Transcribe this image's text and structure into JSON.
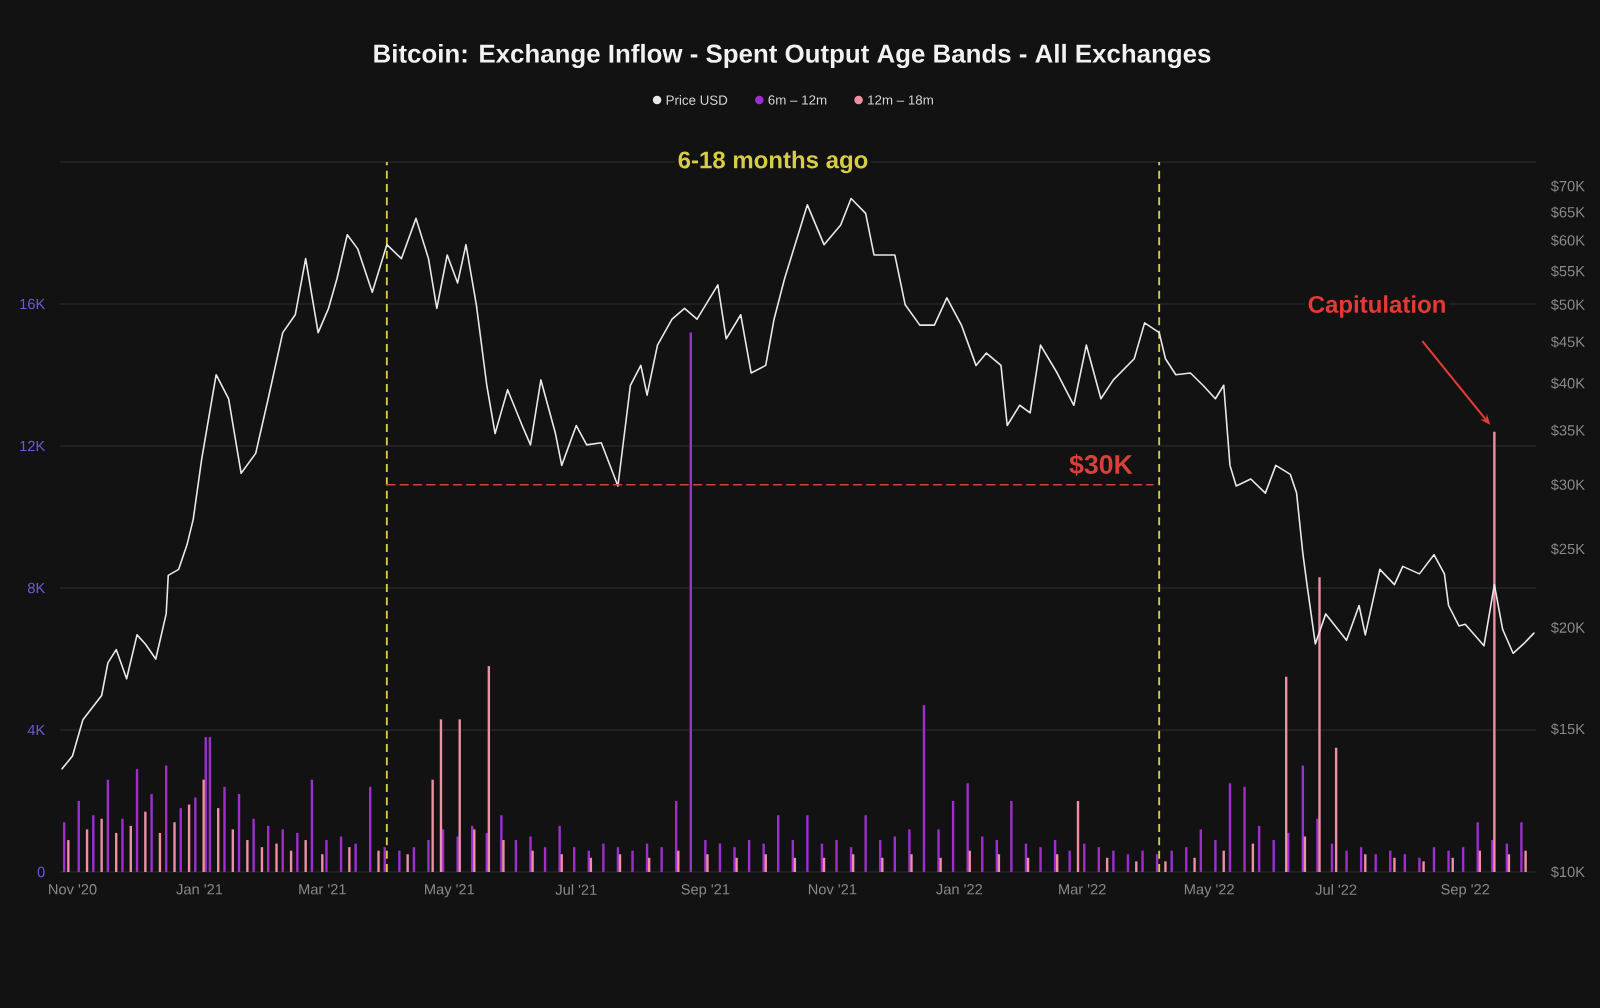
{
  "chart_data": {
    "type": "bar",
    "title": "Bitcoin: Exchange Inflow - Spent Output Age Bands - All Exchanges",
    "xlim": [
      "2020-10-26",
      "2022-10-05"
    ],
    "xticks": [
      {
        "value": "2020-11-01",
        "label": "Nov '20"
      },
      {
        "value": "2021-01-01",
        "label": "Jan '21"
      },
      {
        "value": "2021-03-01",
        "label": "Mar '21"
      },
      {
        "value": "2021-05-01",
        "label": "May '21"
      },
      {
        "value": "2021-07-01",
        "label": "Jul '21"
      },
      {
        "value": "2021-09-01",
        "label": "Sep '21"
      },
      {
        "value": "2021-11-01",
        "label": "Nov '21"
      },
      {
        "value": "2022-01-01",
        "label": "Jan '22"
      },
      {
        "value": "2022-03-01",
        "label": "Mar '22"
      },
      {
        "value": "2022-05-01",
        "label": "May '22"
      },
      {
        "value": "2022-07-01",
        "label": "Jul '22"
      },
      {
        "value": "2022-09-01",
        "label": "Sep '22"
      }
    ],
    "ylim": [
      0,
      20000
    ],
    "yticks": [
      0,
      {
        "value": 4000,
        "label": "4K"
      },
      {
        "value": 8000,
        "label": "8K"
      },
      {
        "value": 12000,
        "label": "12K"
      },
      {
        "value": 16000,
        "label": "16K"
      },
      {
        "value": 20000,
        "label": null
      }
    ],
    "y2lim": [
      10000,
      75000
    ],
    "y2ticks": [
      {
        "value": 10000,
        "label": "$10K"
      },
      {
        "value": 15000,
        "label": "$15K"
      },
      {
        "value": 20000,
        "label": "$20K"
      },
      {
        "value": 25000,
        "label": "$25K"
      },
      {
        "value": 30000,
        "label": "$30K"
      },
      {
        "value": 35000,
        "label": "$35K"
      },
      {
        "value": 40000,
        "label": "$40K"
      },
      {
        "value": 45000,
        "label": "$45K"
      },
      {
        "value": 50000,
        "label": "$50K"
      },
      {
        "value": 55000,
        "label": "$55K"
      },
      {
        "value": 60000,
        "label": "$60K"
      },
      {
        "value": 65000,
        "label": "$65K"
      },
      {
        "value": 70000,
        "label": "$70K"
      }
    ],
    "log": "y2",
    "grid": "y",
    "legend": "top",
    "series": [
      {
        "name": "Price USD",
        "type": "line",
        "axis": "y2",
        "color": "#e8e8e8",
        "x": [
          "2020-10-27",
          "2020-11-01",
          "2020-11-06",
          "2020-11-11",
          "2020-11-15",
          "2020-11-18",
          "2020-11-22",
          "2020-11-27",
          "2020-12-02",
          "2020-12-06",
          "2020-12-11",
          "2020-12-16",
          "2020-12-17",
          "2020-12-22",
          "2020-12-26",
          "2020-12-29",
          "2021-01-02",
          "2021-01-09",
          "2021-01-15",
          "2021-01-21",
          "2021-01-28",
          "2021-02-03",
          "2021-02-10",
          "2021-02-16",
          "2021-02-21",
          "2021-02-27",
          "2021-03-04",
          "2021-03-08",
          "2021-03-13",
          "2021-03-18",
          "2021-03-25",
          "2021-04-01",
          "2021-04-08",
          "2021-04-15",
          "2021-04-21",
          "2021-04-25",
          "2021-04-30",
          "2021-05-05",
          "2021-05-09",
          "2021-05-14",
          "2021-05-19",
          "2021-05-23",
          "2021-05-29",
          "2021-06-05",
          "2021-06-09",
          "2021-06-14",
          "2021-06-21",
          "2021-06-24",
          "2021-07-01",
          "2021-07-06",
          "2021-07-13",
          "2021-07-21",
          "2021-07-27",
          "2021-08-01",
          "2021-08-04",
          "2021-08-09",
          "2021-08-16",
          "2021-08-22",
          "2021-08-28",
          "2021-09-07",
          "2021-09-11",
          "2021-09-18",
          "2021-09-23",
          "2021-09-30",
          "2021-10-04",
          "2021-10-09",
          "2021-10-17",
          "2021-10-20",
          "2021-10-28",
          "2021-11-05",
          "2021-11-10",
          "2021-11-17",
          "2021-11-21",
          "2021-12-01",
          "2021-12-06",
          "2021-12-13",
          "2021-12-20",
          "2021-12-26",
          "2022-01-02",
          "2022-01-09",
          "2022-01-14",
          "2022-01-21",
          "2022-01-24",
          "2022-01-30",
          "2022-02-04",
          "2022-02-09",
          "2022-02-17",
          "2022-02-25",
          "2022-03-03",
          "2022-03-10",
          "2022-03-16",
          "2022-03-26",
          "2022-03-31",
          "2022-04-07",
          "2022-04-10",
          "2022-04-15",
          "2022-04-22",
          "2022-04-28",
          "2022-05-04",
          "2022-05-08",
          "2022-05-11",
          "2022-05-14",
          "2022-05-21",
          "2022-05-28",
          "2022-06-02",
          "2022-06-09",
          "2022-06-12",
          "2022-06-15",
          "2022-06-17",
          "2022-06-21",
          "2022-06-26",
          "2022-07-06",
          "2022-07-12",
          "2022-07-15",
          "2022-07-22",
          "2022-07-29",
          "2022-08-02",
          "2022-08-10",
          "2022-08-17",
          "2022-08-22",
          "2022-08-24",
          "2022-08-29",
          "2022-09-01",
          "2022-09-10",
          "2022-09-15",
          "2022-09-19",
          "2022-09-24",
          "2022-09-29",
          "2022-10-04"
        ],
        "values": [
          13400,
          13900,
          15400,
          16000,
          16500,
          18100,
          18800,
          17300,
          19600,
          19100,
          18300,
          20800,
          23200,
          23600,
          25300,
          27200,
          32200,
          41000,
          38300,
          31000,
          32800,
          38300,
          46200,
          48600,
          57000,
          46200,
          49500,
          53800,
          61000,
          58600,
          51800,
          59300,
          57000,
          63900,
          57000,
          49500,
          57600,
          53200,
          59300,
          50000,
          39800,
          34700,
          39300,
          35500,
          33600,
          40400,
          34700,
          31700,
          35500,
          33600,
          33800,
          29900,
          39800,
          42100,
          38700,
          44600,
          48000,
          49500,
          48000,
          52900,
          45400,
          48600,
          41200,
          42100,
          48000,
          53800,
          62700,
          66400,
          59300,
          62700,
          67600,
          64800,
          57600,
          57600,
          50000,
          47200,
          47200,
          51000,
          47200,
          42100,
          43600,
          42100,
          35500,
          37600,
          36800,
          44600,
          41200,
          37600,
          44600,
          38300,
          40400,
          42900,
          47500,
          46200,
          42900,
          41000,
          41200,
          39800,
          38300,
          39800,
          31700,
          29900,
          30500,
          29300,
          31700,
          30900,
          29300,
          24700,
          22600,
          19100,
          20800,
          19300,
          21300,
          19600,
          23600,
          22600,
          23800,
          23300,
          24600,
          23300,
          21300,
          20100,
          20200,
          19000,
          22600,
          19900,
          18600,
          19100,
          19700
        ]
      },
      {
        "name": "6m – 12m",
        "color": "#9d2fd0",
        "x": [
          "2020-10-28",
          "2020-11-04",
          "2020-11-11",
          "2020-11-18",
          "2020-11-25",
          "2020-12-02",
          "2020-12-09",
          "2020-12-16",
          "2020-12-23",
          "2020-12-30",
          "2021-01-04",
          "2021-01-06",
          "2021-01-13",
          "2021-01-20",
          "2021-01-27",
          "2021-02-03",
          "2021-02-10",
          "2021-02-17",
          "2021-02-24",
          "2021-03-03",
          "2021-03-10",
          "2021-03-17",
          "2021-03-24",
          "2021-03-31",
          "2021-04-07",
          "2021-04-14",
          "2021-04-21",
          "2021-04-28",
          "2021-05-05",
          "2021-05-12",
          "2021-05-19",
          "2021-05-26",
          "2021-06-02",
          "2021-06-09",
          "2021-06-16",
          "2021-06-23",
          "2021-06-30",
          "2021-07-07",
          "2021-07-14",
          "2021-07-21",
          "2021-07-28",
          "2021-08-04",
          "2021-08-11",
          "2021-08-18",
          "2021-08-25",
          "2021-09-01",
          "2021-09-08",
          "2021-09-15",
          "2021-09-22",
          "2021-09-29",
          "2021-10-06",
          "2021-10-13",
          "2021-10-20",
          "2021-10-27",
          "2021-11-03",
          "2021-11-10",
          "2021-11-17",
          "2021-11-24",
          "2021-12-01",
          "2021-12-08",
          "2021-12-15",
          "2021-12-22",
          "2021-12-29",
          "2022-01-05",
          "2022-01-12",
          "2022-01-19",
          "2022-01-26",
          "2022-02-02",
          "2022-02-09",
          "2022-02-16",
          "2022-02-23",
          "2022-03-02",
          "2022-03-09",
          "2022-03-16",
          "2022-03-23",
          "2022-03-30",
          "2022-04-06",
          "2022-04-13",
          "2022-04-20",
          "2022-04-27",
          "2022-05-04",
          "2022-05-11",
          "2022-05-18",
          "2022-05-25",
          "2022-06-01",
          "2022-06-08",
          "2022-06-15",
          "2022-06-22",
          "2022-06-29",
          "2022-07-06",
          "2022-07-13",
          "2022-07-20",
          "2022-07-27",
          "2022-08-03",
          "2022-08-10",
          "2022-08-17",
          "2022-08-24",
          "2022-08-31",
          "2022-09-07",
          "2022-09-14",
          "2022-09-21",
          "2022-09-28"
        ],
        "values": [
          1400,
          2000,
          1600,
          2600,
          1500,
          2900,
          2200,
          3000,
          1800,
          2100,
          3800,
          3800,
          2400,
          2200,
          1500,
          1300,
          1200,
          1100,
          2600,
          900,
          1000,
          800,
          2400,
          700,
          600,
          700,
          900,
          1200,
          1000,
          1300,
          1100,
          1600,
          900,
          1000,
          700,
          1300,
          700,
          600,
          800,
          700,
          600,
          800,
          700,
          2000,
          15200,
          900,
          800,
          700,
          900,
          800,
          1600,
          900,
          1600,
          800,
          900,
          700,
          1600,
          900,
          1000,
          1200,
          4700,
          1200,
          2000,
          2500,
          1000,
          900,
          2000,
          800,
          700,
          900,
          600,
          800,
          700,
          600,
          500,
          600,
          500,
          600,
          700,
          1200,
          900,
          2500,
          2400,
          1300,
          900,
          1100,
          3000,
          1500,
          800,
          600,
          700,
          500,
          600,
          500,
          400,
          700,
          600,
          700,
          1400,
          900,
          800,
          1400
        ]
      },
      {
        "name": "12m – 18m",
        "color": "#ef8fa3",
        "x": [
          "2020-10-30",
          "2020-11-08",
          "2020-11-15",
          "2020-11-22",
          "2020-11-29",
          "2020-12-06",
          "2020-12-13",
          "2020-12-20",
          "2020-12-27",
          "2021-01-03",
          "2021-01-10",
          "2021-01-17",
          "2021-01-24",
          "2021-01-31",
          "2021-02-07",
          "2021-02-14",
          "2021-02-21",
          "2021-03-01",
          "2021-03-14",
          "2021-03-28",
          "2021-04-11",
          "2021-04-23",
          "2021-04-27",
          "2021-05-06",
          "2021-05-13",
          "2021-05-20",
          "2021-05-27",
          "2021-06-10",
          "2021-06-24",
          "2021-07-08",
          "2021-07-22",
          "2021-08-05",
          "2021-08-19",
          "2021-09-02",
          "2021-09-16",
          "2021-09-30",
          "2021-10-14",
          "2021-10-28",
          "2021-11-11",
          "2021-11-25",
          "2021-12-09",
          "2021-12-23",
          "2022-01-06",
          "2022-01-20",
          "2022-02-03",
          "2022-02-17",
          "2022-02-27",
          "2022-03-13",
          "2022-03-27",
          "2022-04-10",
          "2022-04-24",
          "2022-05-08",
          "2022-05-22",
          "2022-06-07",
          "2022-06-16",
          "2022-06-23",
          "2022-07-01",
          "2022-07-15",
          "2022-07-29",
          "2022-08-12",
          "2022-08-26",
          "2022-09-08",
          "2022-09-15",
          "2022-09-22",
          "2022-09-30"
        ],
        "values": [
          900,
          1200,
          1500,
          1100,
          1300,
          1700,
          1100,
          1400,
          1900,
          2600,
          1800,
          1200,
          900,
          700,
          800,
          600,
          900,
          500,
          700,
          600,
          500,
          2600,
          4300,
          4300,
          1200,
          5800,
          900,
          600,
          500,
          400,
          500,
          400,
          600,
          500,
          400,
          500,
          400,
          400,
          500,
          400,
          500,
          400,
          600,
          500,
          400,
          500,
          2000,
          400,
          300,
          300,
          400,
          600,
          800,
          5500,
          1000,
          8300,
          3500,
          500,
          400,
          300,
          400,
          600,
          12400,
          500,
          600
        ]
      },
      {
        "name": "$30K",
        "type": "line",
        "axis": "y2",
        "color": "#d8403a",
        "line_style": "dashed",
        "x": [
          "2021-04-01",
          "2022-04-04"
        ],
        "values": [
          30000,
          30000
        ]
      }
    ],
    "ref_lines": [
      {
        "axis": "x",
        "value": "2021-04-01",
        "color": "#d6cc45",
        "line_style": "dashed"
      },
      {
        "axis": "x",
        "value": "2022-04-07",
        "color": "#d6cc45",
        "line_style": "dashed"
      }
    ],
    "annotations": [
      "6-18 months ago",
      {
        "text": "Capitulation",
        "x": "2022-09-15",
        "y": 12400
      }
    ]
  }
}
